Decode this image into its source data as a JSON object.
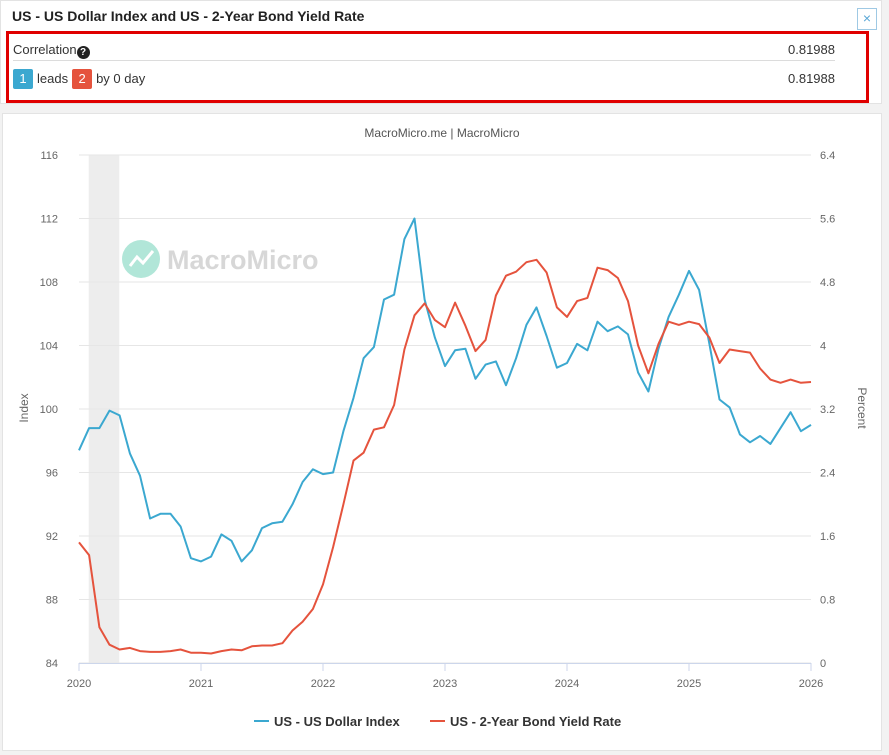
{
  "header": {
    "title": "US - US Dollar Index and US - 2-Year Bond Yield Rate",
    "close_label": "×"
  },
  "correlation": {
    "label": "Correlation",
    "help_glyph": "?",
    "value": "0.81988",
    "lead_badge_1": "1",
    "lead_text": "leads",
    "lead_badge_2": "2",
    "lag_text": "by 0 day",
    "lead_value": "0.81988"
  },
  "chart_data": {
    "type": "line",
    "title": "MacroMicro.me | MacroMicro",
    "watermark": "MacroMicro",
    "xlabel": "",
    "x_ticks": [
      "2020",
      "2021",
      "2022",
      "2023",
      "2024",
      "2025",
      "2026"
    ],
    "x_range": [
      2020,
      2026
    ],
    "y_left": {
      "label": "Index",
      "range": [
        84,
        116
      ],
      "ticks": [
        "84",
        "88",
        "92",
        "96",
        "100",
        "104",
        "108",
        "112",
        "116"
      ]
    },
    "y_right": {
      "label": "Percent",
      "range": [
        0,
        6.4
      ],
      "ticks": [
        "0",
        "0.8",
        "1.6",
        "2.4",
        "3.2",
        "4",
        "4.8",
        "5.6",
        "6.4"
      ]
    },
    "shaded_period": [
      2020.08,
      2020.33
    ],
    "grid": true,
    "legend_position": "bottom-center",
    "series": [
      {
        "name": "US - US Dollar Index",
        "axis": "left",
        "color": "#3ba8d0",
        "x": [
          2020.0,
          2020.083,
          2020.167,
          2020.25,
          2020.333,
          2020.417,
          2020.5,
          2020.583,
          2020.667,
          2020.75,
          2020.833,
          2020.917,
          2021.0,
          2021.083,
          2021.167,
          2021.25,
          2021.333,
          2021.417,
          2021.5,
          2021.583,
          2021.667,
          2021.75,
          2021.833,
          2021.917,
          2022.0,
          2022.083,
          2022.167,
          2022.25,
          2022.333,
          2022.417,
          2022.5,
          2022.583,
          2022.667,
          2022.75,
          2022.833,
          2022.917,
          2023.0,
          2023.083,
          2023.167,
          2023.25,
          2023.333,
          2023.417,
          2023.5,
          2023.583,
          2023.667,
          2023.75,
          2023.833,
          2023.917,
          2024.0,
          2024.083,
          2024.167,
          2024.25,
          2024.333,
          2024.417,
          2024.5,
          2024.583,
          2024.667,
          2024.75,
          2024.833,
          2024.917,
          2025.0,
          2025.083,
          2025.167,
          2025.25,
          2025.333,
          2025.417,
          2025.5,
          2025.583,
          2025.667,
          2025.75,
          2025.833,
          2025.917,
          2026.0
        ],
        "values": [
          97.4,
          98.8,
          98.8,
          99.9,
          99.6,
          97.2,
          95.8,
          93.1,
          93.4,
          93.4,
          92.6,
          90.6,
          90.4,
          90.7,
          92.1,
          91.7,
          90.4,
          91.1,
          92.5,
          92.8,
          92.9,
          94.0,
          95.4,
          96.2,
          95.9,
          96.0,
          98.6,
          100.7,
          103.2,
          103.9,
          106.9,
          107.2,
          110.7,
          112.0,
          106.9,
          104.5,
          102.7,
          103.7,
          103.8,
          101.9,
          102.8,
          103.0,
          101.5,
          103.2,
          105.3,
          106.4,
          104.6,
          102.6,
          102.9,
          104.1,
          103.7,
          105.5,
          104.9,
          105.2,
          104.7,
          102.3,
          101.1,
          103.8,
          105.8,
          107.2,
          108.7,
          107.5,
          104.1,
          100.6,
          100.1,
          98.4,
          97.9,
          98.3,
          97.8,
          98.8,
          99.8,
          98.6,
          99.0
        ]
      },
      {
        "name": "US - 2-Year Bond Yield Rate",
        "axis": "right",
        "color": "#e5533d",
        "x": [
          2020.0,
          2020.083,
          2020.167,
          2020.25,
          2020.333,
          2020.417,
          2020.5,
          2020.583,
          2020.667,
          2020.75,
          2020.833,
          2020.917,
          2021.0,
          2021.083,
          2021.167,
          2021.25,
          2021.333,
          2021.417,
          2021.5,
          2021.583,
          2021.667,
          2021.75,
          2021.833,
          2021.917,
          2022.0,
          2022.083,
          2022.167,
          2022.25,
          2022.333,
          2022.417,
          2022.5,
          2022.583,
          2022.667,
          2022.75,
          2022.833,
          2022.917,
          2023.0,
          2023.083,
          2023.167,
          2023.25,
          2023.333,
          2023.417,
          2023.5,
          2023.583,
          2023.667,
          2023.75,
          2023.833,
          2023.917,
          2024.0,
          2024.083,
          2024.167,
          2024.25,
          2024.333,
          2024.417,
          2024.5,
          2024.583,
          2024.667,
          2024.75,
          2024.833,
          2024.917,
          2025.0,
          2025.083,
          2025.167,
          2025.25,
          2025.333,
          2025.417,
          2025.5,
          2025.583,
          2025.667,
          2025.75,
          2025.833,
          2025.917,
          2026.0
        ],
        "values": [
          1.52,
          1.36,
          0.45,
          0.23,
          0.17,
          0.19,
          0.15,
          0.14,
          0.14,
          0.15,
          0.17,
          0.13,
          0.13,
          0.12,
          0.15,
          0.17,
          0.16,
          0.21,
          0.22,
          0.22,
          0.25,
          0.41,
          0.52,
          0.68,
          0.99,
          1.46,
          2.0,
          2.55,
          2.65,
          2.94,
          2.97,
          3.25,
          3.95,
          4.38,
          4.53,
          4.32,
          4.23,
          4.54,
          4.25,
          3.93,
          4.07,
          4.63,
          4.88,
          4.93,
          5.05,
          5.08,
          4.92,
          4.48,
          4.36,
          4.56,
          4.6,
          4.98,
          4.95,
          4.85,
          4.56,
          4.0,
          3.65,
          4.02,
          4.3,
          4.26,
          4.3,
          4.27,
          4.1,
          3.78,
          3.95,
          3.93,
          3.91,
          3.71,
          3.57,
          3.53,
          3.57,
          3.53,
          3.54
        ]
      }
    ]
  }
}
